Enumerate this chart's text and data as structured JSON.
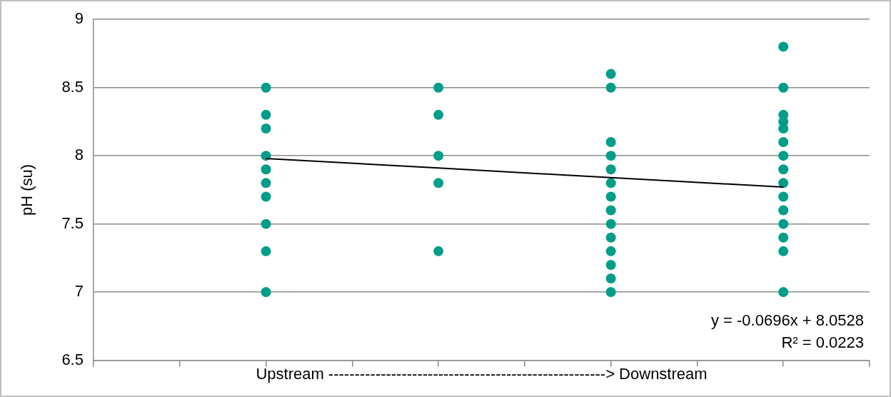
{
  "chart_data": {
    "type": "scatter",
    "xlabel": "Upstream -----------------------------------------------------> Downstream",
    "ylabel": "pH (su)",
    "categories": [
      null,
      null,
      null,
      null
    ],
    "ylim": [
      6.5,
      9
    ],
    "yticks": [
      6.5,
      7,
      7.5,
      8,
      8.5,
      9
    ],
    "grid": "y",
    "tick_labels": "y",
    "marker": "circle",
    "series": [
      {
        "color": "#009e88",
        "values": [
          8.5,
          8.5,
          8.6,
          8.8
        ]
      },
      {
        "color": "#009e88",
        "values": [
          8.3,
          8.3,
          8.5,
          8.5
        ]
      },
      {
        "color": "#009e88",
        "values": [
          8.2,
          8.0,
          8.1,
          8.3
        ]
      },
      {
        "color": "#009e88",
        "values": [
          8.0,
          7.8,
          8.0,
          8.25
        ]
      },
      {
        "color": "#009e88",
        "values": [
          7.9,
          7.3,
          7.9,
          8.2
        ]
      },
      {
        "color": "#009e88",
        "values": [
          7.8,
          null,
          7.8,
          8.1
        ]
      },
      {
        "color": "#009e88",
        "values": [
          7.7,
          null,
          7.7,
          8.0
        ]
      },
      {
        "color": "#009e88",
        "values": [
          7.5,
          null,
          7.6,
          7.9
        ]
      },
      {
        "color": "#009e88",
        "values": [
          7.3,
          null,
          7.5,
          7.8
        ]
      },
      {
        "color": "#009e88",
        "values": [
          7.0,
          null,
          7.4,
          7.7
        ]
      },
      {
        "color": "#009e88",
        "values": [
          null,
          null,
          7.3,
          7.6
        ]
      },
      {
        "color": "#009e88",
        "values": [
          null,
          null,
          7.2,
          7.5
        ]
      },
      {
        "color": "#009e88",
        "values": [
          null,
          null,
          7.1,
          7.4
        ]
      },
      {
        "color": "#009e88",
        "values": [
          null,
          null,
          7.0,
          7.3
        ]
      },
      {
        "color": "#009e88",
        "values": [
          null,
          null,
          null,
          7.0
        ]
      },
      {
        "type": "line",
        "marker": "none",
        "line_style": "solid",
        "color": "#000000",
        "values": [
          7.98,
          7.91,
          7.84,
          7.77
        ]
      }
    ],
    "annotations": [
      "y = -0.0696x + 8.0528",
      "R² = 0.0223"
    ]
  }
}
